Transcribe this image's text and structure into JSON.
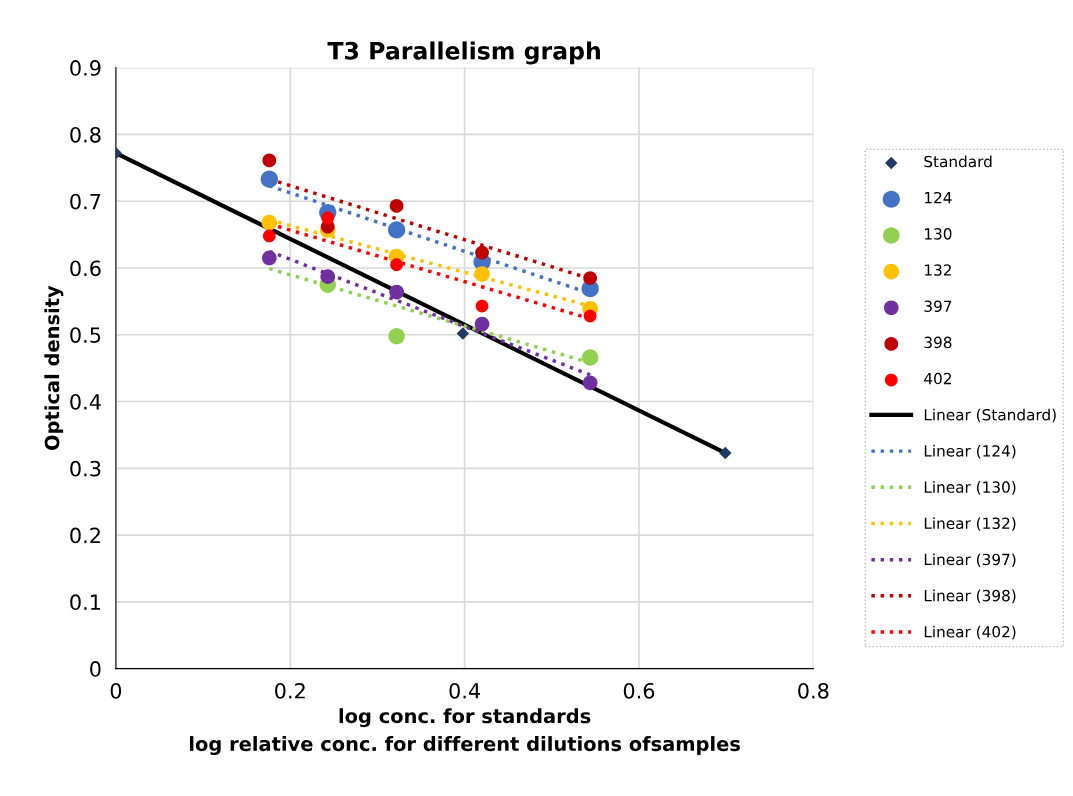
{
  "chart_data": {
    "type": "scatter",
    "title": "T3 Parallelism graph",
    "xlabel": "log conc. for standards\nlog relative conc. for different dilutions ofsamples",
    "ylabel": "Optical density",
    "xlim": [
      0,
      0.8
    ],
    "xticks": [
      0,
      0.2,
      0.4,
      0.6,
      0.8
    ],
    "ylim": [
      0,
      0.9
    ],
    "yticks": [
      0,
      0.1,
      0.2,
      0.3,
      0.4,
      0.5,
      0.6,
      0.7,
      0.8,
      0.9
    ],
    "grid": true,
    "legend": "right",
    "marker": "circle",
    "x": [
      0.176,
      0.243,
      0.322,
      0.42,
      0.544
    ],
    "series": [
      {
        "name": "Standard",
        "color": "#1f3864",
        "marker": "diamond",
        "x": [
          0,
          0.398,
          0.699
        ],
        "values": [
          0.772,
          0.502,
          0.323
        ]
      },
      {
        "name": "124",
        "color": "#4472c4",
        "values": [
          0.733,
          0.683,
          0.657,
          0.609,
          0.569
        ]
      },
      {
        "name": "130",
        "color": "#92d050",
        "values": [
          null,
          0.575,
          0.498,
          null,
          0.466
        ]
      },
      {
        "name": "132",
        "color": "#ffc000",
        "values": [
          0.668,
          0.657,
          0.617,
          0.591,
          0.539
        ]
      },
      {
        "name": "397",
        "color": "#7030a0",
        "values": [
          0.615,
          0.587,
          0.564,
          0.516,
          0.428
        ]
      },
      {
        "name": "398",
        "color": "#c00000",
        "values": [
          0.761,
          0.662,
          0.693,
          0.623,
          0.585
        ]
      },
      {
        "name": "402",
        "color": "#ff0000",
        "values": [
          0.648,
          0.675,
          0.605,
          0.543,
          0.528
        ]
      },
      {
        "name": "Linear (Standard)",
        "type": "line",
        "line_style": "solid",
        "marker": "none",
        "color": "#000000",
        "x": [
          0,
          0.699
        ],
        "values": [
          0.772,
          0.323
        ]
      },
      {
        "name": "Linear (124)",
        "type": "line",
        "line_style": "dotted",
        "marker": "none",
        "color": "#4472c4",
        "x": [
          0.176,
          0.544
        ],
        "values": [
          0.723,
          0.562
        ]
      },
      {
        "name": "Linear (130)",
        "type": "line",
        "line_style": "dotted",
        "marker": "none",
        "color": "#92d050",
        "x": [
          0.176,
          0.544
        ],
        "values": [
          0.599,
          0.458
        ]
      },
      {
        "name": "Linear (132)",
        "type": "line",
        "line_style": "dotted",
        "marker": "none",
        "color": "#ffc000",
        "x": [
          0.176,
          0.544
        ],
        "values": [
          0.672,
          0.543
        ]
      },
      {
        "name": "Linear (397)",
        "type": "line",
        "line_style": "dotted",
        "marker": "none",
        "color": "#7030a0",
        "x": [
          0.176,
          0.544
        ],
        "values": [
          0.625,
          0.44
        ]
      },
      {
        "name": "Linear (398)",
        "type": "line",
        "line_style": "dotted",
        "marker": "none",
        "color": "#c00000",
        "x": [
          0.176,
          0.544
        ],
        "values": [
          0.733,
          0.584
        ]
      },
      {
        "name": "Linear (402)",
        "type": "line",
        "line_style": "dotted",
        "marker": "none",
        "color": "#ff0000",
        "x": [
          0.176,
          0.544
        ],
        "values": [
          0.666,
          0.524
        ]
      }
    ]
  }
}
